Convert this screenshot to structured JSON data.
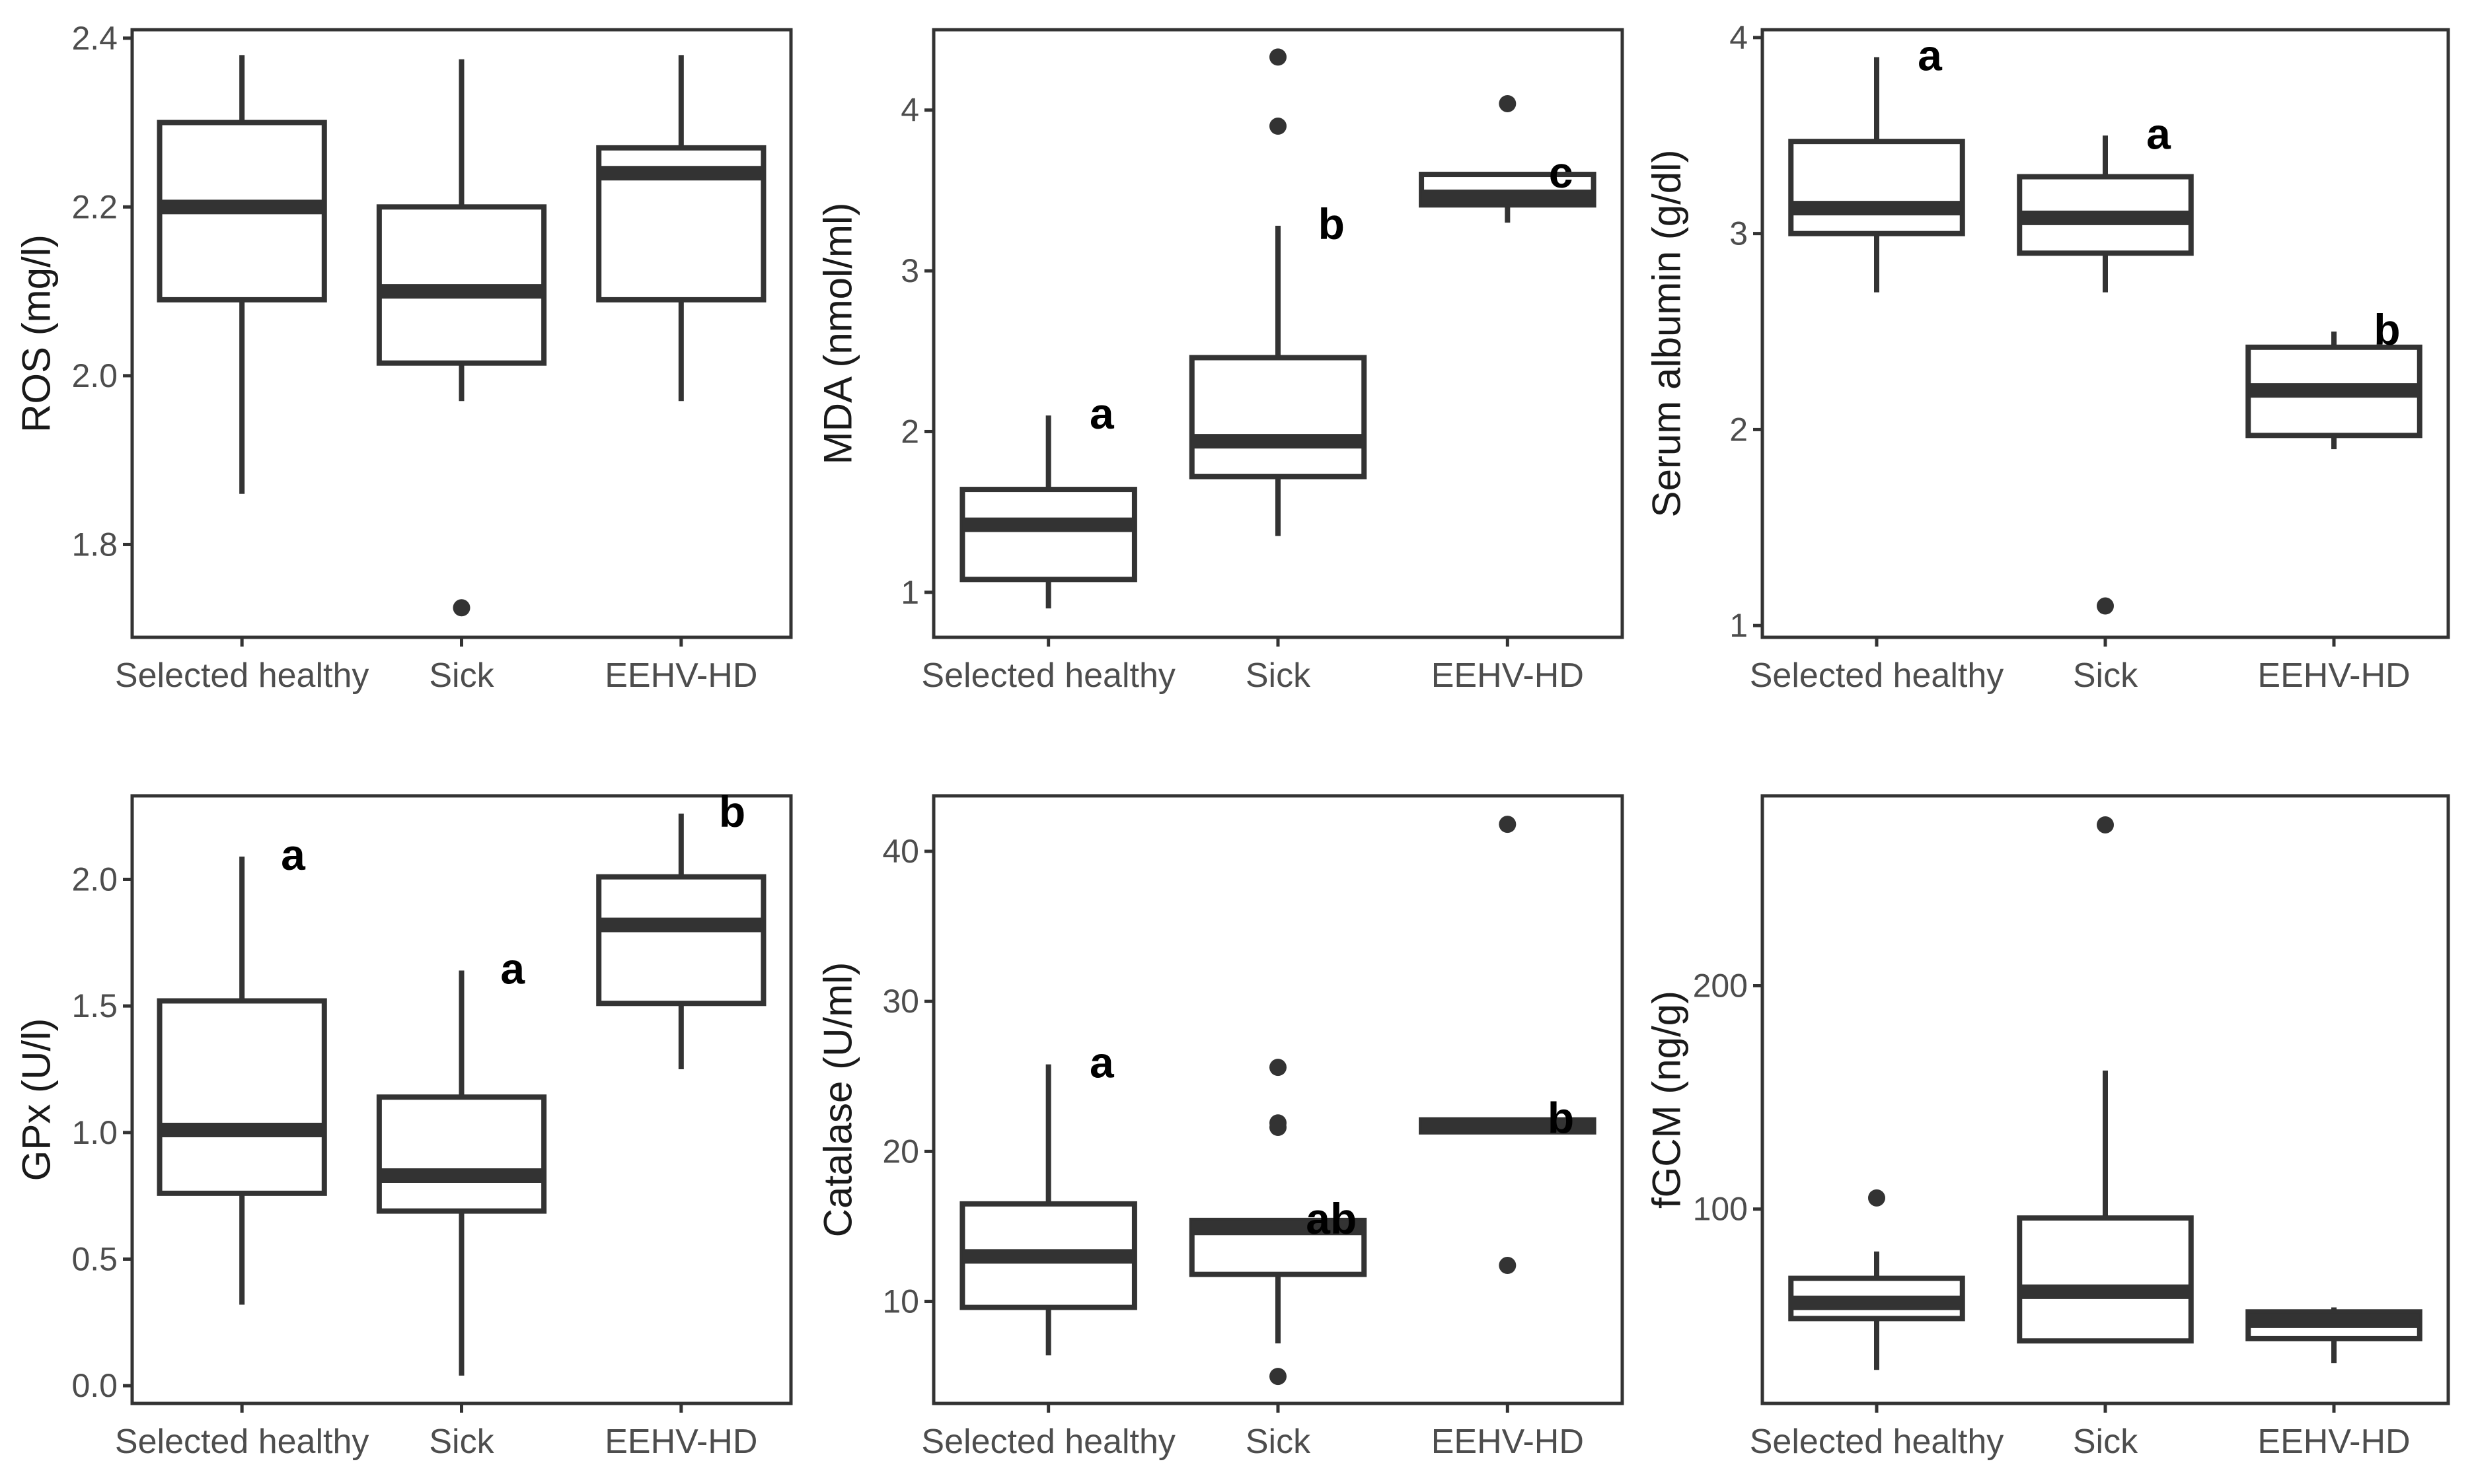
{
  "colors": {
    "ink": "#333333",
    "tick_text": "#4d4d4d",
    "axis_title": "#1a1a1a",
    "letters": "#000000",
    "background": "#ffffff"
  },
  "chart_data": [
    {
      "type": "box",
      "ylabel": "ROS (mg/l)",
      "categories": [
        "Selected healthy",
        "Sick",
        "EEHV-HD"
      ],
      "ylim": [
        1.69,
        2.41
      ],
      "yticks": [
        1.8,
        2.0,
        2.2,
        2.4
      ],
      "ytick_labels": [
        "1.8",
        "2.0",
        "2.2",
        "2.4"
      ],
      "boxes": [
        {
          "whisker_low": 1.86,
          "q1": 2.09,
          "median": 2.2,
          "q3": 2.3,
          "whisker_high": 2.38,
          "outliers": [],
          "letter": ""
        },
        {
          "whisker_low": 1.97,
          "q1": 2.015,
          "median": 2.1,
          "q3": 2.2,
          "whisker_high": 2.375,
          "outliers": [
            1.725
          ],
          "letter": ""
        },
        {
          "whisker_low": 1.97,
          "q1": 2.09,
          "median": 2.24,
          "q3": 2.27,
          "whisker_high": 2.38,
          "outliers": [],
          "letter": ""
        }
      ]
    },
    {
      "type": "box",
      "ylabel": "MDA (nmol/ml)",
      "categories": [
        "Selected healthy",
        "Sick",
        "EEHV-HD"
      ],
      "ylim": [
        0.72,
        4.5
      ],
      "yticks": [
        1,
        2,
        3,
        4
      ],
      "ytick_labels": [
        "1",
        "2",
        "3",
        "4"
      ],
      "boxes": [
        {
          "whisker_low": 0.9,
          "q1": 1.08,
          "median": 1.42,
          "q3": 1.64,
          "whisker_high": 2.1,
          "outliers": [],
          "letter": "a"
        },
        {
          "whisker_low": 1.35,
          "q1": 1.72,
          "median": 1.94,
          "q3": 2.46,
          "whisker_high": 3.28,
          "outliers": [
            3.9,
            4.33
          ],
          "letter": "b"
        },
        {
          "whisker_low": 3.3,
          "q1": 3.41,
          "median": 3.46,
          "q3": 3.6,
          "whisker_high": 3.6,
          "outliers": [
            4.04
          ],
          "letter": "c"
        }
      ]
    },
    {
      "type": "box",
      "ylabel": "Serum albumin (g/dl)",
      "categories": [
        "Selected healthy",
        "Sick",
        "EEHV-HD"
      ],
      "ylim": [
        0.94,
        4.04
      ],
      "yticks": [
        1,
        2,
        3,
        4
      ],
      "ytick_labels": [
        "1",
        "2",
        "3",
        "4"
      ],
      "boxes": [
        {
          "whisker_low": 2.7,
          "q1": 3.0,
          "median": 3.13,
          "q3": 3.47,
          "whisker_high": 3.9,
          "outliers": [],
          "letter": "a"
        },
        {
          "whisker_low": 2.7,
          "q1": 2.9,
          "median": 3.08,
          "q3": 3.29,
          "whisker_high": 3.5,
          "outliers": [
            1.1
          ],
          "letter": "a"
        },
        {
          "whisker_low": 1.9,
          "q1": 1.97,
          "median": 2.2,
          "q3": 2.42,
          "whisker_high": 2.5,
          "outliers": [],
          "letter": "b"
        }
      ]
    },
    {
      "type": "box",
      "ylabel": "GPx (U/l)",
      "categories": [
        "Selected healthy",
        "Sick",
        "EEHV-HD"
      ],
      "ylim": [
        -0.07,
        2.33
      ],
      "yticks": [
        0.0,
        0.5,
        1.0,
        1.5,
        2.0
      ],
      "ytick_labels": [
        "0.0",
        "0.5",
        "1.0",
        "1.5",
        "2.0"
      ],
      "boxes": [
        {
          "whisker_low": 0.32,
          "q1": 0.76,
          "median": 1.01,
          "q3": 1.52,
          "whisker_high": 2.09,
          "outliers": [],
          "letter": "a"
        },
        {
          "whisker_low": 0.04,
          "q1": 0.69,
          "median": 0.83,
          "q3": 1.14,
          "whisker_high": 1.64,
          "outliers": [],
          "letter": "a"
        },
        {
          "whisker_low": 1.25,
          "q1": 1.51,
          "median": 1.82,
          "q3": 2.01,
          "whisker_high": 2.26,
          "outliers": [],
          "letter": "b"
        }
      ]
    },
    {
      "type": "box",
      "ylabel": "Catalase (U/ml)",
      "categories": [
        "Selected healthy",
        "Sick",
        "EEHV-HD"
      ],
      "ylim": [
        3.2,
        43.7
      ],
      "yticks": [
        10,
        20,
        30,
        40
      ],
      "ytick_labels": [
        "10",
        "20",
        "30",
        "40"
      ],
      "boxes": [
        {
          "whisker_low": 6.4,
          "q1": 9.6,
          "median": 13.0,
          "q3": 16.5,
          "whisker_high": 25.8,
          "outliers": [],
          "letter": "a"
        },
        {
          "whisker_low": 7.2,
          "q1": 11.8,
          "median": 14.9,
          "q3": 15.4,
          "whisker_high": 15.4,
          "outliers": [
            25.6,
            21.9,
            21.6,
            5.0
          ],
          "letter": "ab"
        },
        {
          "whisker_low": 21.3,
          "q1": 21.3,
          "median": 21.7,
          "q3": 22.1,
          "whisker_high": 22.1,
          "outliers": [
            41.8,
            12.4
          ],
          "letter": "b"
        }
      ]
    },
    {
      "type": "box",
      "ylabel": "fGCM (ng/g)",
      "categories": [
        "Selected healthy",
        "Sick",
        "EEHV-HD"
      ],
      "ylim": [
        13,
        285
      ],
      "yticks": [
        100,
        200
      ],
      "ytick_labels": [
        "100",
        "200"
      ],
      "boxes": [
        {
          "whisker_low": 28,
          "q1": 51,
          "median": 58,
          "q3": 69,
          "whisker_high": 81,
          "outliers": [
            105
          ],
          "letter": ""
        },
        {
          "whisker_low": 40,
          "q1": 41,
          "median": 63,
          "q3": 96,
          "whisker_high": 162,
          "outliers": [
            272
          ],
          "letter": ""
        },
        {
          "whisker_low": 31,
          "q1": 42,
          "median": 50,
          "q3": 54,
          "whisker_high": 56,
          "outliers": [],
          "letter": ""
        }
      ]
    }
  ]
}
